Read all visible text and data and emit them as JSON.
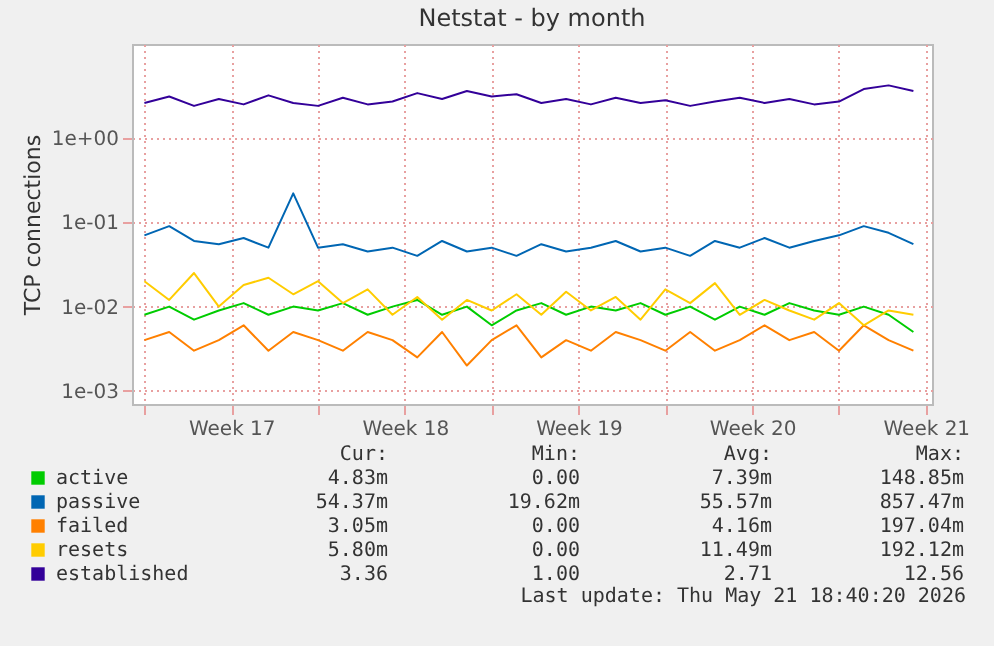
{
  "chart_data": {
    "type": "line",
    "title": "Netstat - by month",
    "ylabel": "TCP connections",
    "x": [
      "2026-04-20",
      "2026-04-21",
      "2026-04-22",
      "2026-04-23",
      "2026-04-24",
      "2026-04-25",
      "2026-04-26",
      "2026-04-27",
      "2026-04-28",
      "2026-04-29",
      "2026-04-30",
      "2026-05-01",
      "2026-05-02",
      "2026-05-03",
      "2026-05-04",
      "2026-05-05",
      "2026-05-06",
      "2026-05-07",
      "2026-05-08",
      "2026-05-09",
      "2026-05-10",
      "2026-05-11",
      "2026-05-12",
      "2026-05-13",
      "2026-05-14",
      "2026-05-15",
      "2026-05-16",
      "2026-05-17",
      "2026-05-18",
      "2026-05-19",
      "2026-05-20",
      "2026-05-21"
    ],
    "series": [
      {
        "name": "active",
        "color": "#00cc00",
        "values": [
          0.008,
          0.01,
          0.007,
          0.009,
          0.011,
          0.008,
          0.01,
          0.009,
          0.011,
          0.008,
          0.01,
          0.012,
          0.008,
          0.01,
          0.006,
          0.009,
          0.011,
          0.008,
          0.01,
          0.009,
          0.011,
          0.008,
          0.01,
          0.007,
          0.01,
          0.008,
          0.011,
          0.009,
          0.008,
          0.01,
          0.008,
          0.005
        ]
      },
      {
        "name": "passive",
        "color": "#0066b3",
        "values": [
          0.07,
          0.09,
          0.06,
          0.055,
          0.065,
          0.05,
          0.22,
          0.05,
          0.055,
          0.045,
          0.05,
          0.04,
          0.06,
          0.045,
          0.05,
          0.04,
          0.055,
          0.045,
          0.05,
          0.06,
          0.045,
          0.05,
          0.04,
          0.06,
          0.05,
          0.065,
          0.05,
          0.06,
          0.07,
          0.09,
          0.075,
          0.055
        ]
      },
      {
        "name": "failed",
        "color": "#ff8000",
        "values": [
          0.004,
          0.005,
          0.003,
          0.004,
          0.006,
          0.003,
          0.005,
          0.004,
          0.003,
          0.005,
          0.004,
          0.0025,
          0.005,
          0.002,
          0.004,
          0.006,
          0.0025,
          0.004,
          0.003,
          0.005,
          0.004,
          0.003,
          0.005,
          0.003,
          0.004,
          0.006,
          0.004,
          0.005,
          0.003,
          0.006,
          0.004,
          0.003
        ]
      },
      {
        "name": "resets",
        "color": "#ffcc00",
        "values": [
          0.02,
          0.012,
          0.025,
          0.01,
          0.018,
          0.022,
          0.014,
          0.02,
          0.011,
          0.016,
          0.008,
          0.013,
          0.007,
          0.012,
          0.009,
          0.014,
          0.008,
          0.015,
          0.009,
          0.013,
          0.007,
          0.016,
          0.011,
          0.019,
          0.008,
          0.012,
          0.009,
          0.007,
          0.011,
          0.006,
          0.009,
          0.008
        ]
      },
      {
        "name": "established",
        "color": "#330099",
        "values": [
          2.6,
          3.1,
          2.4,
          2.9,
          2.5,
          3.2,
          2.6,
          2.4,
          3.0,
          2.5,
          2.7,
          3.4,
          2.9,
          3.6,
          3.1,
          3.3,
          2.6,
          2.9,
          2.5,
          3.0,
          2.6,
          2.8,
          2.4,
          2.7,
          3.0,
          2.6,
          2.9,
          2.5,
          2.7,
          3.8,
          4.2,
          3.6
        ]
      }
    ],
    "xlim": [
      "2026-04-19T12:00",
      "2026-05-21T18:00"
    ],
    "xticks": [
      {
        "value": "2026-04-20",
        "label": null
      },
      {
        "value": "2026-04-23T12:00",
        "label": "Week 17"
      },
      {
        "value": "2026-04-27",
        "label": null
      },
      {
        "value": "2026-04-30T12:00",
        "label": "Week 18"
      },
      {
        "value": "2026-05-04",
        "label": null
      },
      {
        "value": "2026-05-07T12:00",
        "label": "Week 19"
      },
      {
        "value": "2026-05-11",
        "label": null
      },
      {
        "value": "2026-05-14T12:00",
        "label": "Week 20"
      },
      {
        "value": "2026-05-18",
        "label": null
      },
      {
        "value": "2026-05-21T12:00",
        "label": "Week 21"
      }
    ],
    "ylim": [
      0.0007,
      13
    ],
    "yticks": [
      {
        "value": 0.001,
        "label": "1e-03"
      },
      {
        "value": 0.01,
        "label": "1e-02"
      },
      {
        "value": 0.1,
        "label": "1e-01"
      },
      {
        "value": 1,
        "label": "1e+00"
      }
    ],
    "log": "y",
    "grid": true,
    "legend": "bottom left",
    "marker": "none",
    "line_style": "solid",
    "annotations": [
      "Cur:",
      "Min:",
      "Avg:",
      "Max:",
      "4.83m",
      "0.00",
      "7.39m",
      "148.85m",
      "54.37m",
      "19.62m",
      "55.57m",
      "857.47m",
      "3.05m",
      "0.00",
      "4.16m",
      "197.04m",
      "5.80m",
      "0.00",
      "11.49m",
      "192.12m",
      "3.36",
      "1.00",
      "2.71",
      "12.56",
      "Last update: Thu May 21 18:40:20 2026"
    ]
  }
}
